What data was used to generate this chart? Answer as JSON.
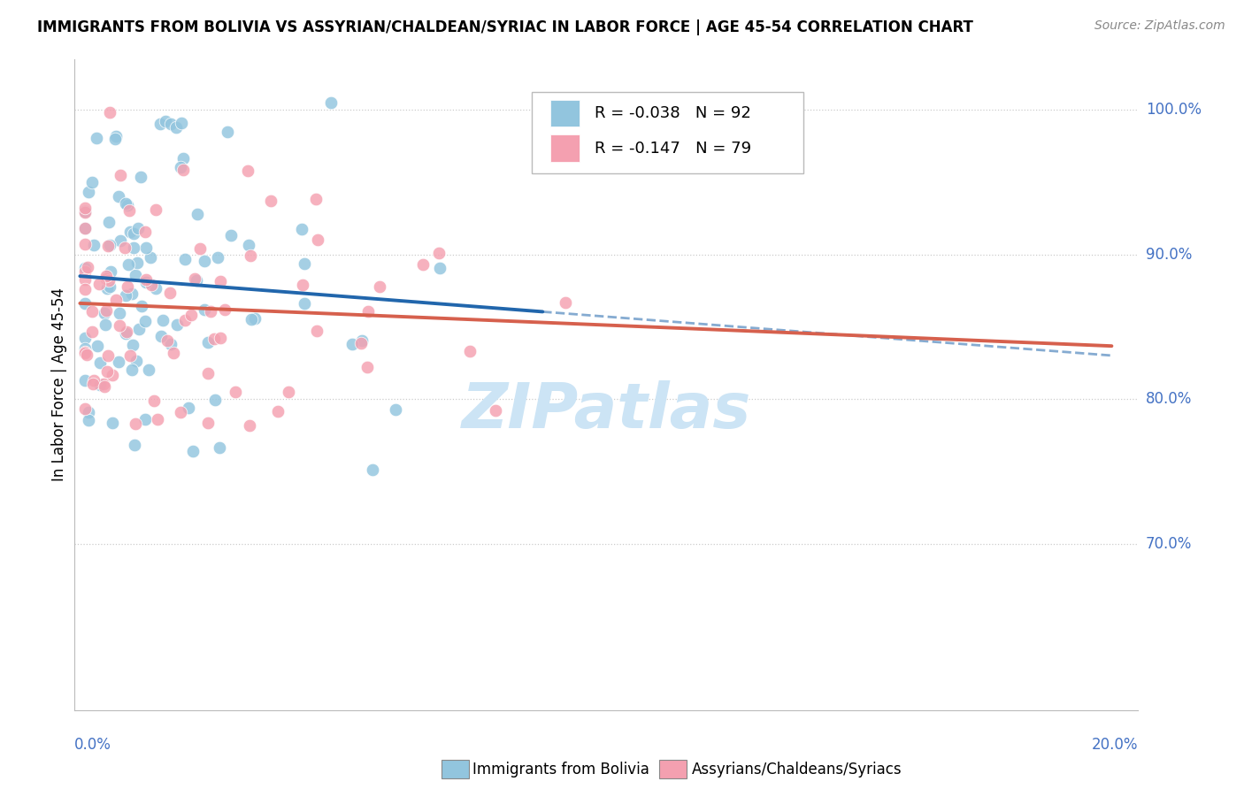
{
  "title": "IMMIGRANTS FROM BOLIVIA VS ASSYRIAN/CHALDEAN/SYRIAC IN LABOR FORCE | AGE 45-54 CORRELATION CHART",
  "source": "Source: ZipAtlas.com",
  "ylabel": "In Labor Force | Age 45-54",
  "xmin": 0.0,
  "xmax": 0.2,
  "ymin": 0.585,
  "ymax": 1.035,
  "legend_R1": "-0.038",
  "legend_N1": "92",
  "legend_R2": "-0.147",
  "legend_N2": "79",
  "color_blue": "#92c5de",
  "color_pink": "#f4a0b0",
  "color_line_blue": "#2166ac",
  "color_line_pink": "#d6604d",
  "color_axis": "#bbbbbb",
  "color_grid": "#cccccc",
  "color_right_labels": "#4472c4",
  "watermark_color": "#cce4f5",
  "title_fontsize": 12,
  "source_fontsize": 10,
  "label_fontsize": 12,
  "tick_fontsize": 12,
  "legend_fontsize": 13
}
